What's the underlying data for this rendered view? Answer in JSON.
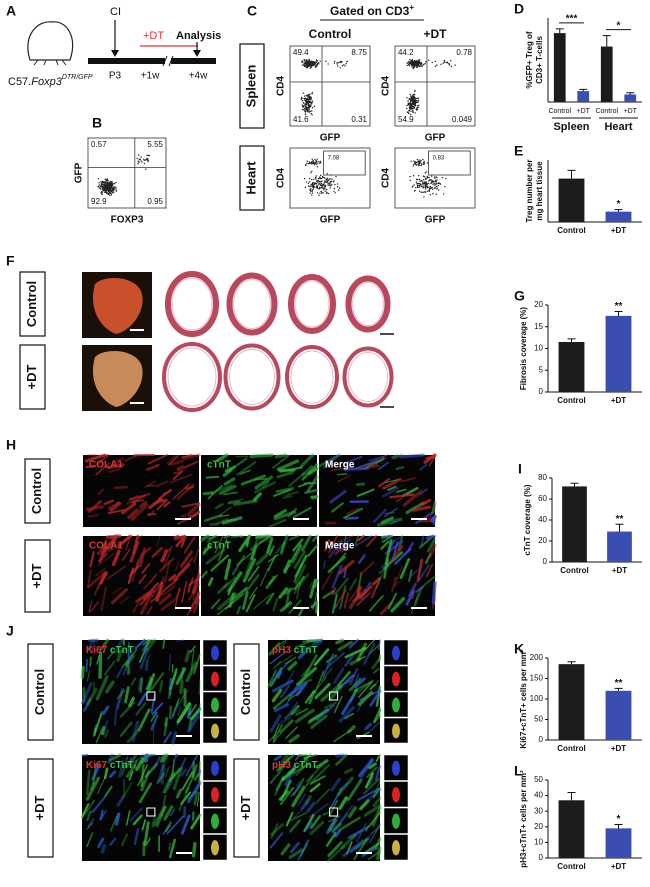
{
  "panel_a": {
    "label": "A",
    "mouse": "C57.",
    "gene": "Foxp3",
    "superscript": "DTR/GFP",
    "injury": "CI",
    "treatment": "+DT",
    "analysis": "Analysis",
    "timepoints": [
      "P3",
      "+1w",
      "+4w"
    ]
  },
  "panel_b": {
    "label": "B",
    "x_label": "FOXP3",
    "y_label": "GFP",
    "quadrants": [
      0.57,
      5.55,
      92.9,
      0.95
    ]
  },
  "panel_c": {
    "label": "C",
    "title": "Gated on CD3",
    "title_sup": "+",
    "columns": [
      "Control",
      "+DT"
    ],
    "rows": [
      {
        "name": "Spleen",
        "plots": [
          {
            "x_label": "GFP",
            "y_label": "CD4",
            "quadrants": [
              49.4,
              8.75,
              41.6,
              0.31
            ]
          },
          {
            "x_label": "GFP",
            "y_label": "CD4",
            "quadrants": [
              44.2,
              0.78,
              54.9,
              0.049
            ]
          }
        ]
      },
      {
        "name": "Heart",
        "plots": [
          {
            "x_label": "GFP",
            "y_label": "CD4",
            "gate": 7.08
          },
          {
            "x_label": "GFP",
            "y_label": "CD4",
            "gate": 0.83
          }
        ]
      }
    ]
  },
  "panel_f": {
    "label": "F",
    "rows": [
      "Control",
      "+DT"
    ]
  },
  "panel_h": {
    "label": "H",
    "rows": [
      "Control",
      "+DT"
    ],
    "channels": [
      "COLA1",
      "cTnT",
      "Merge"
    ]
  },
  "panel_j": {
    "label": "J",
    "rows": [
      "Control",
      "+DT"
    ],
    "stains": [
      [
        "Ki67",
        "cTnT"
      ],
      [
        "pH3",
        "cTnT"
      ]
    ]
  },
  "chart_data": [
    {
      "type": "bar",
      "label": "D",
      "y_label": [
        "%GFP+ Treg of",
        "CD3+ T-cells"
      ],
      "categories": [
        "Control",
        "+DT",
        "Control",
        "+DT"
      ],
      "groups": [
        "Spleen",
        "Heart"
      ],
      "values": [
        8.2,
        1.3,
        6.6,
        0.9
      ],
      "errors": [
        0.5,
        0.2,
        1.3,
        0.2
      ],
      "colors": [
        "#1c1c1c",
        "#3a4eb2",
        "#1c1c1c",
        "#3a4eb2"
      ],
      "ylim": [
        0,
        10
      ],
      "annotations": [
        "***",
        "*"
      ]
    },
    {
      "type": "bar",
      "label": "E",
      "y_label": [
        "Treg number per",
        "mg heart tissue"
      ],
      "categories": [
        "Control",
        "+DT"
      ],
      "values": [
        21,
        5
      ],
      "errors": [
        4,
        1
      ],
      "colors": [
        "#1c1c1c",
        "#3a4eb2"
      ],
      "ylim": [
        0,
        30
      ],
      "annotations": [
        "*"
      ]
    },
    {
      "type": "bar",
      "label": "G",
      "y_label": "Fibrosis coverage (%)",
      "categories": [
        "Control",
        "+DT"
      ],
      "values": [
        11.5,
        17.5
      ],
      "errors": [
        0.7,
        1.0
      ],
      "colors": [
        "#1c1c1c",
        "#3a4eb2"
      ],
      "ylim": [
        0,
        20
      ],
      "yticks": [
        0,
        5,
        10,
        15,
        20
      ],
      "annotations": [
        "**"
      ]
    },
    {
      "type": "bar",
      "label": "I",
      "y_label": "cTnT coverage (%)",
      "categories": [
        "Control",
        "+DT"
      ],
      "values": [
        72,
        29
      ],
      "errors": [
        3,
        7
      ],
      "colors": [
        "#1c1c1c",
        "#3a4eb2"
      ],
      "ylim": [
        0,
        80
      ],
      "yticks": [
        0,
        20,
        40,
        60,
        80
      ],
      "annotations": [
        "**"
      ]
    },
    {
      "type": "bar",
      "label": "K",
      "y_label": "Ki67+cTnT+ cells per mm²",
      "categories": [
        "Control",
        "+DT"
      ],
      "values": [
        185,
        120
      ],
      "errors": [
        6,
        6
      ],
      "colors": [
        "#1c1c1c",
        "#3a4eb2"
      ],
      "ylim": [
        0,
        200
      ],
      "yticks": [
        0,
        50,
        100,
        150,
        200
      ],
      "annotations": [
        "**"
      ]
    },
    {
      "type": "bar",
      "label": "L",
      "y_label": "pH3+cTnT+ cells per mm²",
      "categories": [
        "Control",
        "+DT"
      ],
      "values": [
        37,
        19
      ],
      "errors": [
        5,
        2.5
      ],
      "colors": [
        "#1c1c1c",
        "#3a4eb2"
      ],
      "ylim": [
        0,
        50
      ],
      "yticks": [
        0,
        10,
        20,
        30,
        40,
        50
      ],
      "annotations": [
        "*"
      ]
    }
  ]
}
